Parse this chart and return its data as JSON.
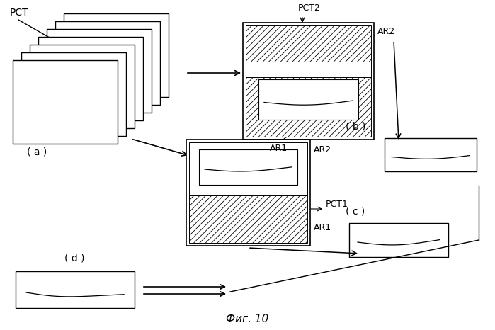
{
  "bg_color": "#ffffff",
  "fig_title": "Фиг. 10",
  "label_PCT": "PCT",
  "label_PCT2": "PCT2",
  "label_PCT1": "PCT1",
  "label_AR1": "AR1",
  "label_AR2": "AR2",
  "label_a": "( a )",
  "label_b": "( b )",
  "label_c": "( c )",
  "label_d": "( d )"
}
